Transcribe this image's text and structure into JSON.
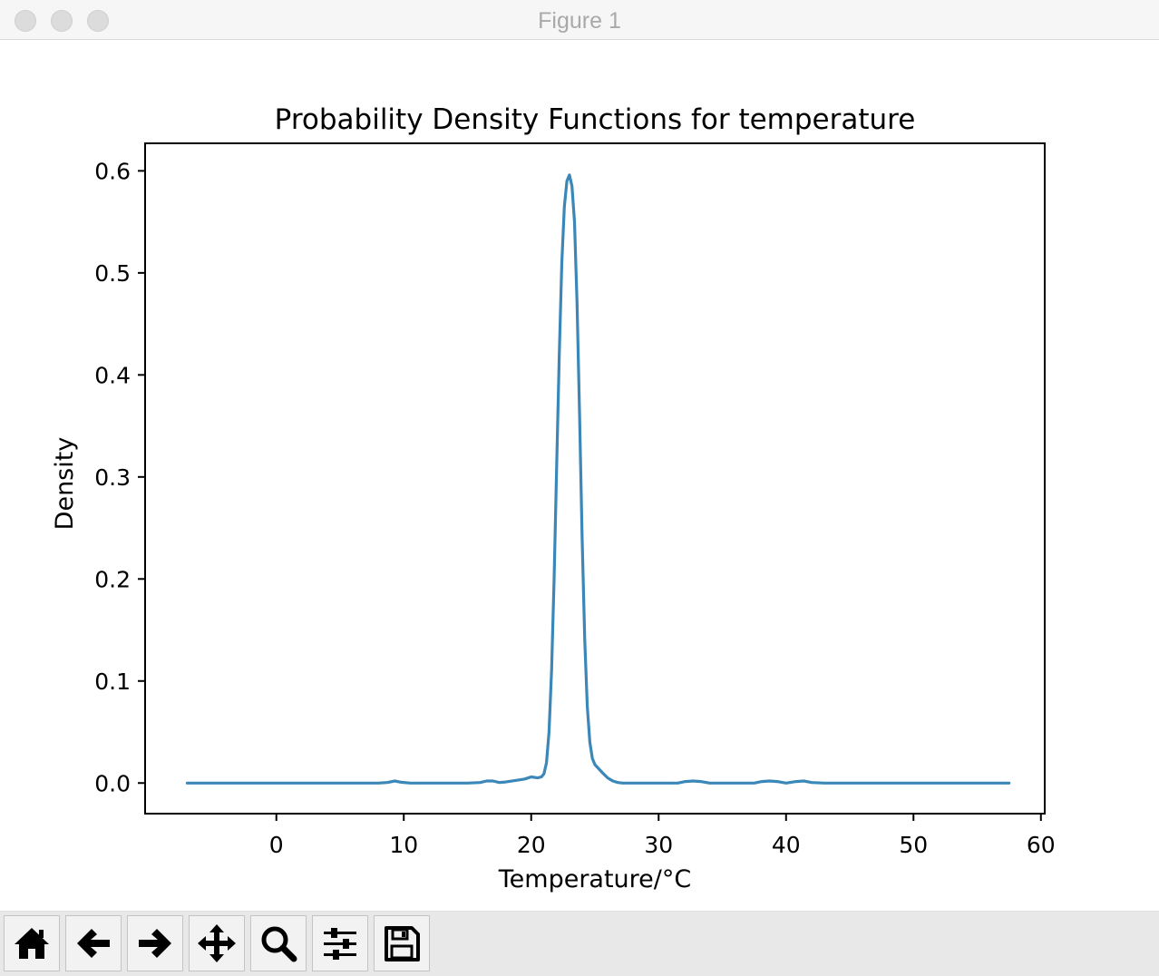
{
  "window": {
    "title": "Figure 1"
  },
  "toolbar": {
    "buttons": [
      {
        "icon": "home-icon",
        "name": "home-button"
      },
      {
        "icon": "back-arrow-icon",
        "name": "back-button"
      },
      {
        "icon": "forward-arrow-icon",
        "name": "forward-button"
      },
      {
        "icon": "pan-move-icon",
        "name": "pan-button"
      },
      {
        "icon": "zoom-magnifier-icon",
        "name": "zoom-button"
      },
      {
        "icon": "configure-subplots-sliders-icon",
        "name": "configure-subplots-button"
      },
      {
        "icon": "save-floppy-icon",
        "name": "save-button"
      }
    ]
  },
  "chart_data": {
    "type": "line",
    "title": "Probability Density Functions for temperature",
    "xlabel": "Temperature/°C",
    "ylabel": "Density",
    "xlim": [
      -10.3,
      60.3
    ],
    "ylim": [
      -0.03,
      0.627
    ],
    "xticks": [
      0,
      10,
      20,
      30,
      40,
      50,
      60
    ],
    "yticks": [
      0.0,
      0.1,
      0.2,
      0.3,
      0.4,
      0.5,
      0.6
    ],
    "ytick_labels": [
      "0.0",
      "0.1",
      "0.2",
      "0.3",
      "0.4",
      "0.5",
      "0.6"
    ],
    "grid": false,
    "line_color": "#3a87b8",
    "series": [
      {
        "x": [
          -7,
          0,
          5,
          8,
          8.7,
          9.3,
          9.8,
          10.5,
          12,
          15,
          16,
          16.5,
          17,
          17.5,
          18,
          19,
          19.5,
          20,
          20.5,
          20.8,
          21.0,
          21.2,
          21.4,
          21.6,
          21.8,
          22.0,
          22.2,
          22.4,
          22.6,
          22.8,
          23.0,
          23.2,
          23.4,
          23.6,
          23.8,
          24.0,
          24.2,
          24.4,
          24.6,
          24.8,
          25.0,
          25.3,
          25.6,
          26.0,
          26.4,
          26.8,
          27.2,
          27.6,
          28,
          30,
          31.5,
          32.1,
          32.7,
          33.3,
          34,
          37.5,
          38.1,
          38.7,
          39.3,
          40,
          40.8,
          41.4,
          42,
          43,
          50,
          57.5
        ],
        "y": [
          0.0,
          0.0,
          0.0,
          0.0,
          0.0005,
          0.002,
          0.0008,
          0.0,
          0.0,
          0.0,
          0.0005,
          0.002,
          0.002,
          0.0005,
          0.001,
          0.003,
          0.004,
          0.006,
          0.005,
          0.006,
          0.009,
          0.02,
          0.05,
          0.11,
          0.2,
          0.31,
          0.42,
          0.51,
          0.565,
          0.59,
          0.596,
          0.585,
          0.55,
          0.47,
          0.36,
          0.24,
          0.14,
          0.075,
          0.04,
          0.024,
          0.018,
          0.014,
          0.01,
          0.005,
          0.002,
          0.0005,
          0.0,
          0.0,
          0.0,
          0.0,
          0.0,
          0.0015,
          0.002,
          0.0015,
          0.0,
          0.0,
          0.0015,
          0.002,
          0.0015,
          0.0,
          0.0015,
          0.002,
          0.0005,
          0.0,
          0.0,
          0.0
        ]
      }
    ]
  }
}
